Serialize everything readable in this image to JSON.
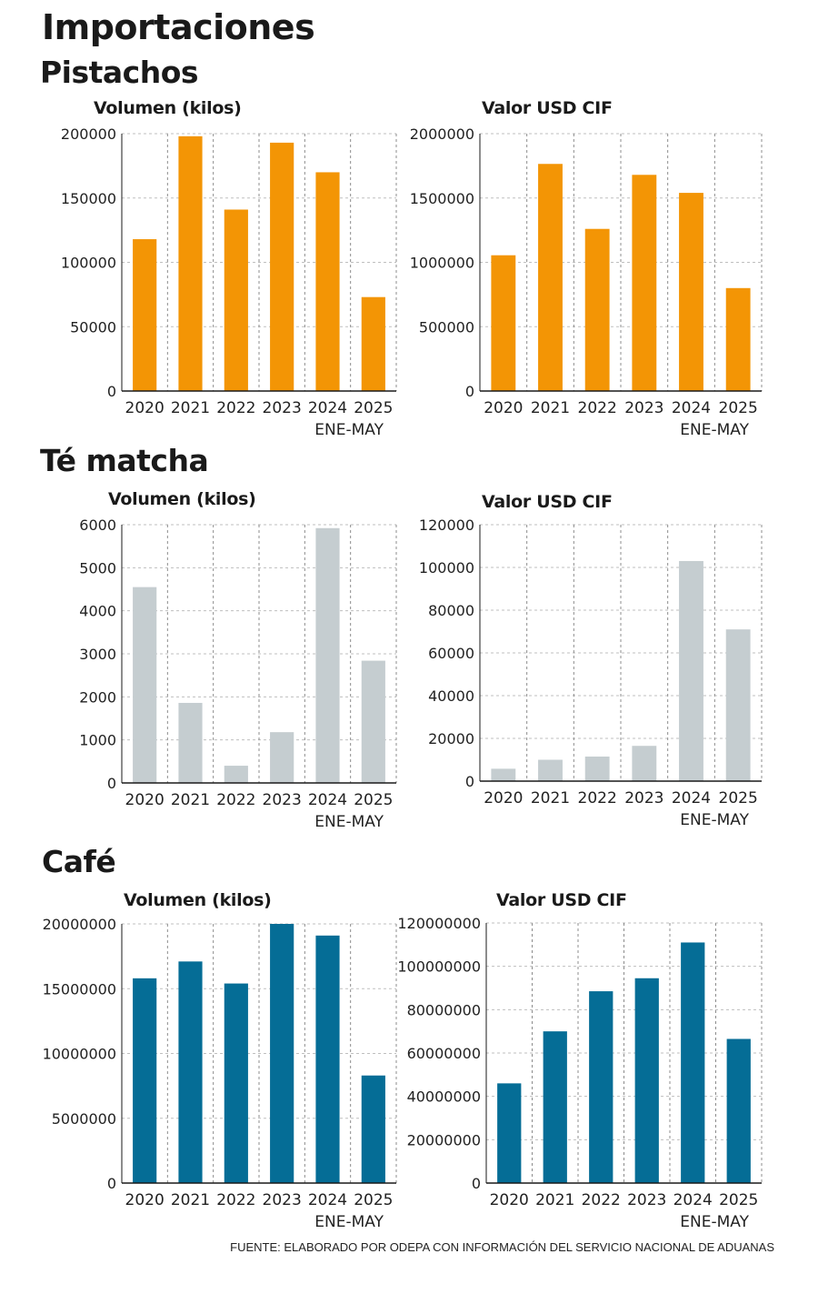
{
  "title": "Importaciones",
  "colors": {
    "pistachos": "#f39505",
    "te_matcha": "#c5cdd0",
    "cafe": "#056d96"
  },
  "source": "FUENTE: ELABORADO POR ODEPA CON INFORMACIÓN DEL SERVICIO NACIONAL DE ADUANAS",
  "sections": [
    {
      "title": "Pistachos"
    },
    {
      "title": "Té matcha"
    },
    {
      "title": "Café"
    }
  ],
  "chart_data": [
    {
      "type": "bar",
      "title": "Volumen (kilos)",
      "xlabel": "",
      "ylabel": "",
      "categories": [
        "2020",
        "2021",
        "2022",
        "2023",
        "2024",
        "2025"
      ],
      "category_sublabels": [
        "",
        "",
        "",
        "",
        "",
        "ENE-MAY"
      ],
      "values": [
        118000,
        198000,
        141000,
        193000,
        170000,
        73000
      ],
      "ylim": [
        0,
        200000
      ],
      "yticks": [
        0,
        50000,
        100000,
        150000,
        200000
      ],
      "color": "#f39505",
      "grid": true
    },
    {
      "type": "bar",
      "title": "Valor USD CIF",
      "xlabel": "",
      "ylabel": "",
      "categories": [
        "2020",
        "2021",
        "2022",
        "2023",
        "2024",
        "2025"
      ],
      "category_sublabels": [
        "",
        "",
        "",
        "",
        "",
        "ENE-MAY"
      ],
      "values": [
        1055000,
        1765000,
        1260000,
        1680000,
        1540000,
        800000
      ],
      "ylim": [
        0,
        2000000
      ],
      "yticks": [
        0,
        500000,
        1000000,
        1500000,
        2000000
      ],
      "color": "#f39505",
      "grid": true
    },
    {
      "type": "bar",
      "title": "Volumen (kilos)",
      "xlabel": "",
      "ylabel": "",
      "categories": [
        "2020",
        "2021",
        "2022",
        "2023",
        "2024",
        "2025"
      ],
      "category_sublabels": [
        "",
        "",
        "",
        "",
        "",
        "ENE-MAY"
      ],
      "values": [
        4550,
        1860,
        400,
        1180,
        5920,
        2840
      ],
      "ylim": [
        0,
        6000
      ],
      "yticks": [
        0,
        1000,
        2000,
        3000,
        4000,
        5000,
        6000
      ],
      "color": "#c5cdd0",
      "grid": true
    },
    {
      "type": "bar",
      "title": "Valor USD CIF",
      "xlabel": "",
      "ylabel": "",
      "categories": [
        "2020",
        "2021",
        "2022",
        "2023",
        "2024",
        "2025"
      ],
      "category_sublabels": [
        "",
        "",
        "",
        "",
        "",
        "ENE-MAY"
      ],
      "values": [
        5800,
        10000,
        11500,
        16500,
        103000,
        71000
      ],
      "ylim": [
        0,
        120000
      ],
      "yticks": [
        0,
        20000,
        40000,
        60000,
        80000,
        100000,
        120000
      ],
      "color": "#c5cdd0",
      "grid": true
    },
    {
      "type": "bar",
      "title": "Volumen (kilos)",
      "xlabel": "",
      "ylabel": "",
      "categories": [
        "2020",
        "2021",
        "2022",
        "2023",
        "2024",
        "2025"
      ],
      "category_sublabels": [
        "",
        "",
        "",
        "",
        "",
        "ENE-MAY"
      ],
      "values": [
        15800000,
        17100000,
        15400000,
        20200000,
        19100000,
        8300000
      ],
      "ylim": [
        0,
        20000000
      ],
      "yticks": [
        0,
        5000000,
        10000000,
        15000000,
        20000000
      ],
      "color": "#056d96",
      "grid": true
    },
    {
      "type": "bar",
      "title": "Valor USD CIF",
      "xlabel": "",
      "ylabel": "",
      "categories": [
        "2020",
        "2021",
        "2022",
        "2023",
        "2024",
        "2025"
      ],
      "category_sublabels": [
        "",
        "",
        "",
        "",
        "",
        "ENE-MAY"
      ],
      "values": [
        46000000,
        70000000,
        88500000,
        94500000,
        111000000,
        66500000
      ],
      "ylim": [
        0,
        120000000
      ],
      "yticks": [
        0,
        20000000,
        40000000,
        60000000,
        80000000,
        100000000,
        120000000
      ],
      "color": "#056d96",
      "grid": true
    }
  ]
}
